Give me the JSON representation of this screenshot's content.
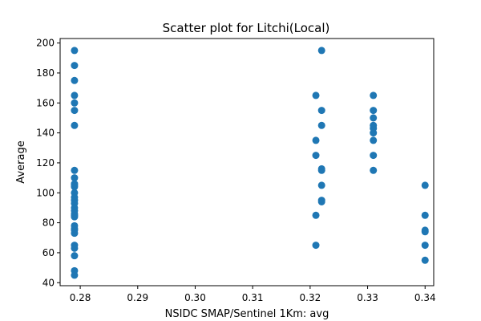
{
  "chart_data": {
    "type": "scatter",
    "title": "Scatter plot for Litchi(Local)",
    "xlabel": "NSIDC SMAP/Sentinel 1Km: avg",
    "ylabel": "Average",
    "xlim": [
      0.2765,
      0.3415
    ],
    "ylim": [
      38,
      203
    ],
    "xticks": [
      0.28,
      0.29,
      0.3,
      0.31,
      0.32,
      0.33,
      0.34
    ],
    "xtick_labels": [
      "0.28",
      "0.29",
      "0.30",
      "0.31",
      "0.32",
      "0.33",
      "0.34"
    ],
    "yticks": [
      40,
      60,
      80,
      100,
      120,
      140,
      160,
      180,
      200
    ],
    "ytick_labels": [
      "40",
      "60",
      "80",
      "100",
      "120",
      "140",
      "160",
      "180",
      "200"
    ],
    "grid": false,
    "marker_color": "#1f77b4",
    "series": [
      {
        "x": [
          0.279,
          0.279,
          0.279,
          0.279,
          0.279,
          0.279,
          0.279,
          0.279,
          0.279,
          0.279,
          0.279,
          0.279,
          0.279,
          0.279,
          0.279,
          0.279,
          0.279,
          0.279,
          0.279,
          0.279,
          0.279,
          0.279,
          0.279,
          0.279,
          0.279,
          0.279,
          0.279,
          0.279,
          0.279,
          0.279,
          0.321,
          0.321,
          0.321,
          0.321,
          0.321,
          0.322,
          0.322,
          0.322,
          0.322,
          0.322,
          0.322,
          0.322,
          0.322,
          0.331,
          0.331,
          0.331,
          0.331,
          0.331,
          0.331,
          0.331,
          0.331,
          0.331,
          0.34,
          0.34,
          0.34,
          0.34,
          0.34,
          0.34
        ],
        "y": [
          195,
          185,
          175,
          165,
          160,
          155,
          145,
          115,
          110,
          105,
          100,
          97,
          95,
          93,
          90,
          88,
          85,
          78,
          75,
          73,
          65,
          63,
          58,
          48,
          45,
          104,
          106,
          86,
          84,
          76,
          165,
          135,
          125,
          85,
          65,
          195,
          155,
          145,
          115,
          105,
          95,
          94,
          116,
          165,
          155,
          150,
          145,
          140,
          135,
          125,
          115,
          143,
          105,
          85,
          75,
          65,
          55,
          74
        ]
      }
    ]
  }
}
